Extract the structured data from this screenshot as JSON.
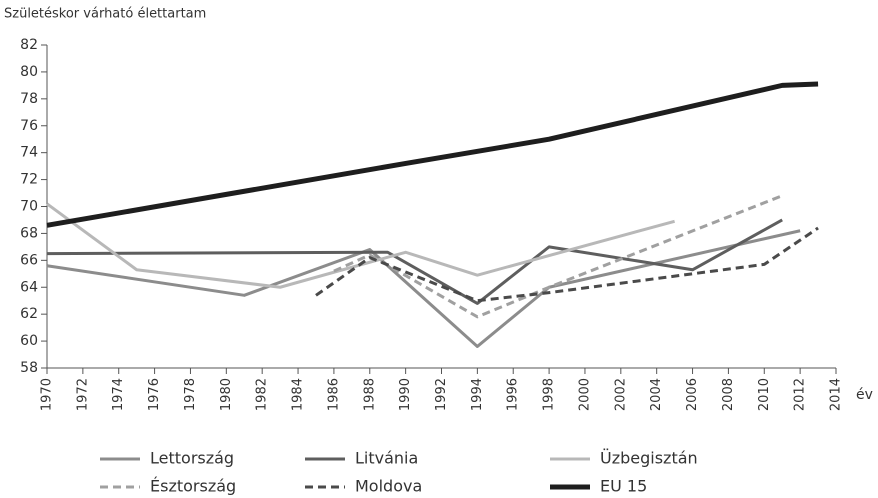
{
  "chart_data": {
    "type": "line",
    "ylabel": "Születéskor várható élettartam",
    "xlabel": "év",
    "xlim": [
      1970,
      2014
    ],
    "xticks": [
      1970,
      1972,
      1974,
      1976,
      1978,
      1980,
      1982,
      1984,
      1986,
      1988,
      1990,
      1992,
      1994,
      1996,
      1998,
      2000,
      2002,
      2004,
      2006,
      2008,
      2010,
      2012,
      2014
    ],
    "ylim": [
      58,
      82
    ],
    "yticks": [
      58,
      60,
      62,
      64,
      66,
      68,
      70,
      72,
      74,
      76,
      78,
      80,
      82
    ],
    "grid": false,
    "legend": "bottom",
    "series": [
      {
        "name": "Lettország",
        "color": "#8c8c8c",
        "line_style": "solid",
        "x": [
          1970,
          1981,
          1988,
          1994,
          1998,
          2012
        ],
        "values": [
          65.6,
          63.4,
          66.8,
          59.6,
          64.0,
          68.2
        ]
      },
      {
        "name": "Litvánia",
        "color": "#5e5e5e",
        "line_style": "solid",
        "x": [
          1970,
          1989,
          1994,
          1998,
          2006,
          2011
        ],
        "values": [
          66.5,
          66.6,
          62.8,
          67.0,
          65.3,
          69.0
        ]
      },
      {
        "name": "Üzbegisztán",
        "color": "#b8b8b8",
        "line_style": "solid",
        "x": [
          1970,
          1975,
          1983,
          1990,
          1994,
          2005
        ],
        "values": [
          70.2,
          65.3,
          64.0,
          66.6,
          64.9,
          68.9
        ]
      },
      {
        "name": "Észtország",
        "color": "#a0a0a0",
        "line_style": "dashed",
        "x": [
          1986,
          1988,
          1994,
          1998,
          2011
        ],
        "values": [
          65.2,
          66.4,
          61.8,
          64.0,
          70.8
        ]
      },
      {
        "name": "Moldova",
        "color": "#4a4a4a",
        "line_style": "dashed",
        "x": [
          1985,
          1988,
          1994,
          1998,
          2010,
          2013
        ],
        "values": [
          63.4,
          66.2,
          63.0,
          63.6,
          65.7,
          68.4
        ]
      },
      {
        "name": "EU 15",
        "color": "#1e1e1e",
        "line_style": "bold",
        "x": [
          1970,
          1980,
          1990,
          1998,
          2011,
          2013
        ],
        "values": [
          68.6,
          70.9,
          73.2,
          75.0,
          79.0,
          79.1
        ]
      }
    ]
  }
}
